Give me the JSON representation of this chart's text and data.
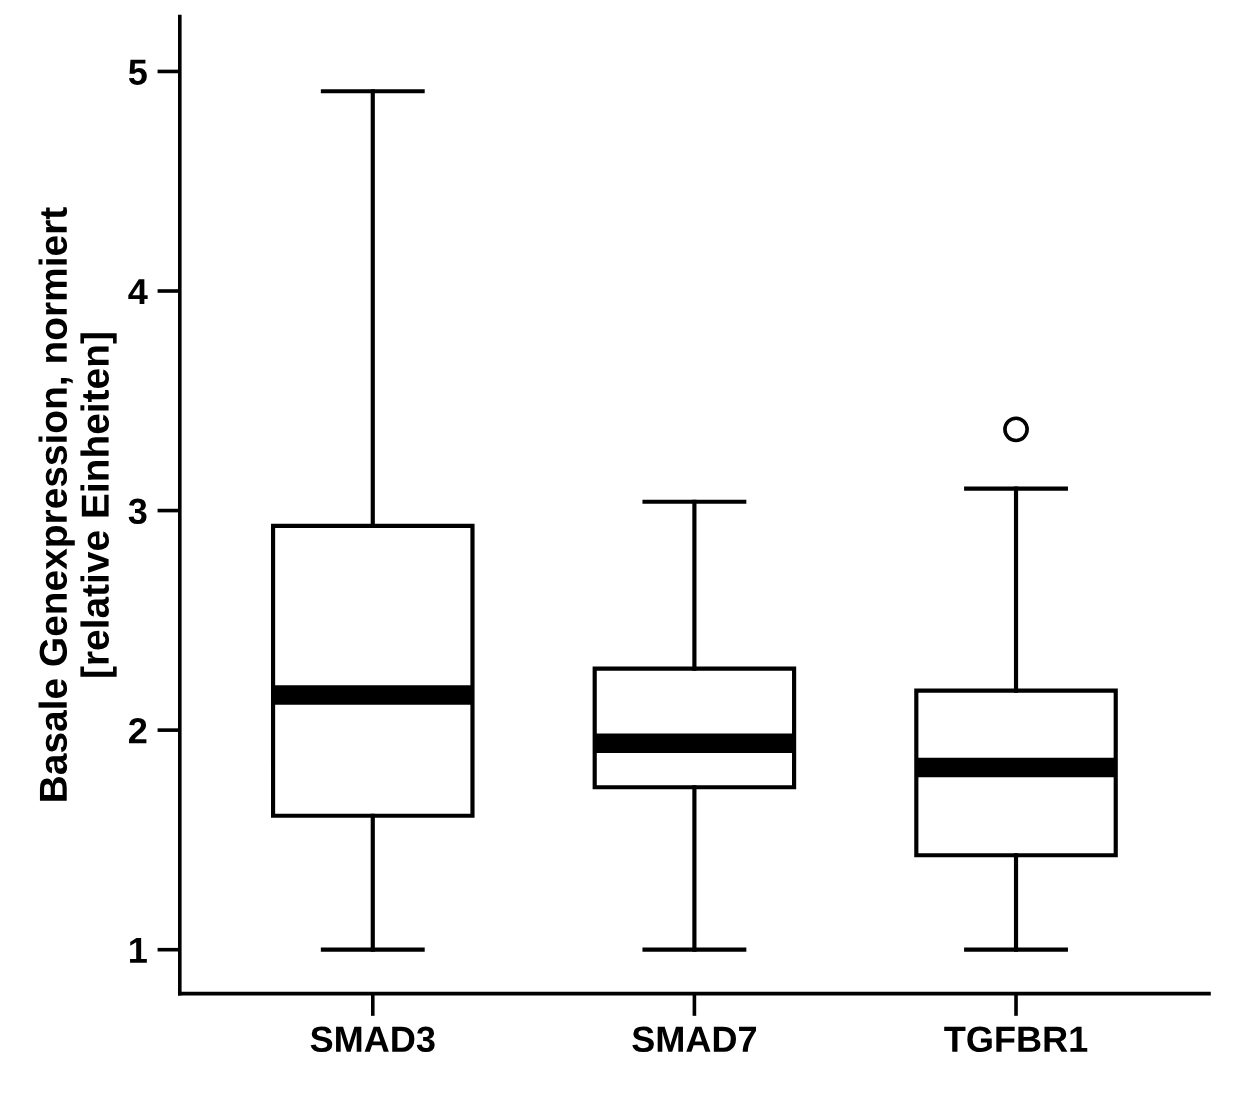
{
  "chart_data": {
    "type": "box",
    "ylabel": "Basale Genexpression, normiert\n[relative Einheiten]",
    "categories": [
      "SMAD3",
      "SMAD7",
      "TGFBR1"
    ],
    "boxes": [
      {
        "low": 1.0,
        "q1": 1.61,
        "median": 2.16,
        "q3": 2.93,
        "high": 4.91
      },
      {
        "low": 1.0,
        "q1": 1.74,
        "median": 1.94,
        "q3": 2.28,
        "high": 3.04
      },
      {
        "low": 1.0,
        "q1": 1.43,
        "median": 1.83,
        "q3": 2.18,
        "high": 3.1,
        "outliers": [
          3.37
        ]
      }
    ],
    "ylim": [
      0.8,
      5.25
    ],
    "yticks": [
      1,
      2,
      3,
      4,
      5
    ],
    "grid": false,
    "legend": false
  }
}
